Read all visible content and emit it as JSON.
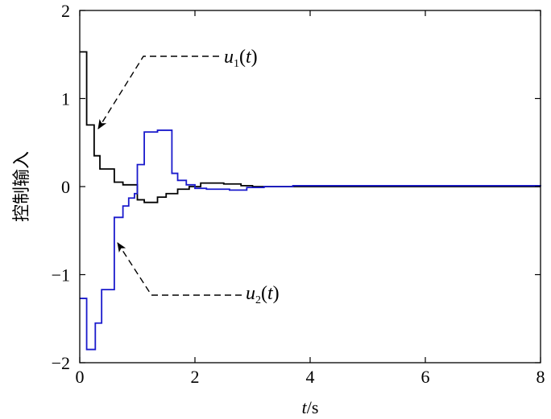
{
  "chart_data": {
    "type": "line",
    "step": true,
    "xlabel": "t/s",
    "ylabel": "控制输入",
    "xlim": [
      0,
      8
    ],
    "ylim": [
      -2,
      2
    ],
    "xticks": [
      0,
      2,
      4,
      6,
      8
    ],
    "yticks": [
      -2,
      -1,
      0,
      1,
      2
    ],
    "ytick_labels": [
      "−2",
      "−1",
      "0",
      "1",
      "2"
    ],
    "grid": false,
    "series": [
      {
        "name": "u1(t)",
        "color": "#000000",
        "x": [
          0,
          0.12,
          0.25,
          0.35,
          0.6,
          0.75,
          1.0,
          1.12,
          1.35,
          1.5,
          1.7,
          1.9,
          2.1,
          2.5,
          2.8,
          3.0,
          3.5,
          8.0
        ],
        "y": [
          1.53,
          0.7,
          0.35,
          0.2,
          0.05,
          0.02,
          -0.15,
          -0.18,
          -0.12,
          -0.08,
          -0.03,
          0.0,
          0.04,
          0.03,
          0.01,
          0.0,
          0.0,
          0.0
        ]
      },
      {
        "name": "u2(t)",
        "color": "#1a1acc",
        "x": [
          0,
          0.12,
          0.27,
          0.38,
          0.6,
          0.75,
          0.85,
          0.95,
          1.0,
          1.12,
          1.35,
          1.6,
          1.7,
          1.85,
          2.0,
          2.2,
          2.6,
          2.9,
          3.2,
          3.7,
          8.0
        ],
        "y": [
          -1.27,
          -1.85,
          -1.55,
          -1.17,
          -0.35,
          -0.22,
          -0.13,
          -0.08,
          0.25,
          0.62,
          0.64,
          0.15,
          0.07,
          0.02,
          -0.02,
          -0.03,
          -0.04,
          -0.01,
          0.0,
          0.01,
          0.0
        ]
      }
    ],
    "annotations": [
      {
        "base": "u",
        "sub": "1",
        "paren": "(t)",
        "target_series": "u1(t)"
      },
      {
        "base": "u",
        "sub": "2",
        "paren": "(t)",
        "target_series": "u2(t)"
      }
    ]
  }
}
